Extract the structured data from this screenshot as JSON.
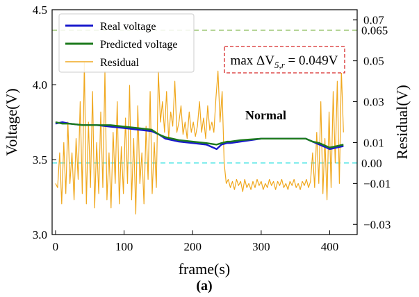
{
  "chart_data": {
    "type": "line",
    "xlabel": "frame(s)",
    "ylabel_left": "Voltage(V)",
    "ylabel_right": "Residual(V)",
    "caption": "(a)",
    "xlim": [
      -5,
      440
    ],
    "ylim_left": [
      3.0,
      4.5
    ],
    "ylim_right": [
      -0.035,
      0.075
    ],
    "x_ticks": [
      0,
      100,
      200,
      300,
      400
    ],
    "y_ticks_left": [
      "3.0",
      "3.5",
      "4.0",
      "4.5"
    ],
    "y_ticks_right": [
      "−0.03",
      "−0.01",
      "0.01",
      "0.03",
      "0.05",
      "0.07"
    ],
    "grid": false,
    "legend_position": "top-left",
    "legend": [
      "Real voltage",
      "Predicted voltage",
      "Residual"
    ],
    "series": [
      {
        "name": "Real voltage",
        "axis": "left",
        "color": "#1a1acc",
        "points": [
          [
            0,
            3.74
          ],
          [
            10,
            3.75
          ],
          [
            20,
            3.74
          ],
          [
            40,
            3.73
          ],
          [
            60,
            3.73
          ],
          [
            80,
            3.72
          ],
          [
            100,
            3.71
          ],
          [
            120,
            3.7
          ],
          [
            140,
            3.69
          ],
          [
            150,
            3.67
          ],
          [
            160,
            3.64
          ],
          [
            180,
            3.62
          ],
          [
            200,
            3.61
          ],
          [
            220,
            3.6
          ],
          [
            235,
            3.57
          ],
          [
            242,
            3.6
          ],
          [
            250,
            3.61
          ],
          [
            255,
            3.61
          ],
          [
            270,
            3.62
          ],
          [
            300,
            3.64
          ],
          [
            330,
            3.64
          ],
          [
            365,
            3.64
          ],
          [
            375,
            3.62
          ],
          [
            385,
            3.6
          ],
          [
            395,
            3.58
          ],
          [
            400,
            3.57
          ],
          [
            410,
            3.58
          ],
          [
            420,
            3.59
          ]
        ]
      },
      {
        "name": "Predicted voltage",
        "axis": "left",
        "color": "#1c7a1c",
        "points": [
          [
            0,
            3.75
          ],
          [
            10,
            3.74
          ],
          [
            20,
            3.74
          ],
          [
            40,
            3.73
          ],
          [
            60,
            3.73
          ],
          [
            80,
            3.73
          ],
          [
            100,
            3.72
          ],
          [
            120,
            3.71
          ],
          [
            140,
            3.7
          ],
          [
            150,
            3.67
          ],
          [
            160,
            3.65
          ],
          [
            180,
            3.63
          ],
          [
            200,
            3.62
          ],
          [
            220,
            3.61
          ],
          [
            235,
            3.6
          ],
          [
            242,
            3.61
          ],
          [
            250,
            3.62
          ],
          [
            255,
            3.62
          ],
          [
            270,
            3.63
          ],
          [
            300,
            3.64
          ],
          [
            330,
            3.64
          ],
          [
            365,
            3.64
          ],
          [
            375,
            3.62
          ],
          [
            385,
            3.61
          ],
          [
            395,
            3.59
          ],
          [
            400,
            3.58
          ],
          [
            410,
            3.59
          ],
          [
            420,
            3.6
          ]
        ]
      },
      {
        "name": "Residual",
        "axis": "right",
        "color": "#f0a81e",
        "points": [
          [
            0,
            -0.01
          ],
          [
            3,
            -0.012
          ],
          [
            6,
            0.005
          ],
          [
            9,
            -0.02
          ],
          [
            12,
            0.01
          ],
          [
            15,
            -0.015
          ],
          [
            18,
            0.02
          ],
          [
            21,
            -0.01
          ],
          [
            24,
            0.005
          ],
          [
            27,
            -0.018
          ],
          [
            30,
            0.012
          ],
          [
            33,
            -0.008
          ],
          [
            36,
            0.03
          ],
          [
            39,
            -0.015
          ],
          [
            42,
            0.049
          ],
          [
            45,
            -0.02
          ],
          [
            48,
            0.02
          ],
          [
            51,
            -0.012
          ],
          [
            54,
            0.035
          ],
          [
            57,
            -0.022
          ],
          [
            60,
            0.01
          ],
          [
            63,
            -0.015
          ],
          [
            66,
            0.025
          ],
          [
            69,
            -0.012
          ],
          [
            72,
            0.045
          ],
          [
            75,
            -0.018
          ],
          [
            78,
            0.005
          ],
          [
            81,
            -0.022
          ],
          [
            84,
            0.015
          ],
          [
            87,
            -0.01
          ],
          [
            90,
            0.03
          ],
          [
            93,
            -0.02
          ],
          [
            96,
            0.008
          ],
          [
            99,
            -0.015
          ],
          [
            102,
            0.022
          ],
          [
            105,
            -0.01
          ],
          [
            108,
            0.038
          ],
          [
            111,
            -0.018
          ],
          [
            114,
            0.012
          ],
          [
            117,
            -0.025
          ],
          [
            120,
            0.028
          ],
          [
            123,
            -0.01
          ],
          [
            126,
            0.005
          ],
          [
            129,
            -0.02
          ],
          [
            132,
            0.018
          ],
          [
            135,
            -0.008
          ],
          [
            138,
            0.035
          ],
          [
            141,
            -0.015
          ],
          [
            144,
            0.01
          ],
          [
            147,
            -0.012
          ],
          [
            150,
            0.045
          ],
          [
            153,
            0.02
          ],
          [
            156,
            0.03
          ],
          [
            159,
            0.015
          ],
          [
            162,
            0.035
          ],
          [
            165,
            0.012
          ],
          [
            168,
            0.025
          ],
          [
            171,
            0.018
          ],
          [
            174,
            0.04
          ],
          [
            177,
            0.015
          ],
          [
            180,
            0.02
          ],
          [
            183,
            0.028
          ],
          [
            186,
            0.014
          ],
          [
            189,
            0.02
          ],
          [
            192,
            0.012
          ],
          [
            195,
            0.025
          ],
          [
            198,
            0.015
          ],
          [
            201,
            0.02
          ],
          [
            204,
            0.013
          ],
          [
            207,
            0.018
          ],
          [
            210,
            0.03
          ],
          [
            213,
            0.015
          ],
          [
            216,
            0.022
          ],
          [
            219,
            0.012
          ],
          [
            222,
            0.028
          ],
          [
            225,
            0.016
          ],
          [
            228,
            0.02
          ],
          [
            231,
            0.015
          ],
          [
            234,
            0.032
          ],
          [
            237,
            0.045
          ],
          [
            240,
            0.02
          ],
          [
            243,
            0.035
          ],
          [
            246,
            0.0
          ],
          [
            249,
            -0.01
          ],
          [
            252,
            -0.008
          ],
          [
            255,
            -0.012
          ],
          [
            258,
            -0.009
          ],
          [
            261,
            -0.013
          ],
          [
            264,
            -0.008
          ],
          [
            267,
            -0.011
          ],
          [
            270,
            -0.009
          ],
          [
            273,
            -0.014
          ],
          [
            276,
            -0.008
          ],
          [
            279,
            -0.012
          ],
          [
            282,
            -0.01
          ],
          [
            285,
            -0.013
          ],
          [
            288,
            -0.009
          ],
          [
            291,
            -0.012
          ],
          [
            294,
            -0.008
          ],
          [
            297,
            -0.011
          ],
          [
            300,
            -0.009
          ],
          [
            303,
            -0.013
          ],
          [
            306,
            -0.01
          ],
          [
            309,
            -0.012
          ],
          [
            312,
            -0.008
          ],
          [
            315,
            -0.011
          ],
          [
            318,
            -0.009
          ],
          [
            321,
            -0.013
          ],
          [
            324,
            -0.009
          ],
          [
            327,
            -0.011
          ],
          [
            330,
            -0.008
          ],
          [
            333,
            -0.012
          ],
          [
            336,
            -0.01
          ],
          [
            339,
            -0.013
          ],
          [
            342,
            -0.009
          ],
          [
            345,
            -0.011
          ],
          [
            348,
            -0.008
          ],
          [
            351,
            -0.012
          ],
          [
            354,
            -0.01
          ],
          [
            357,
            -0.013
          ],
          [
            360,
            -0.009
          ],
          [
            363,
            -0.011
          ],
          [
            366,
            -0.008
          ],
          [
            369,
            -0.012
          ],
          [
            372,
            -0.009
          ],
          [
            375,
            0.005
          ],
          [
            378,
            -0.012
          ],
          [
            381,
            0.015
          ],
          [
            384,
            -0.01
          ],
          [
            387,
            0.03
          ],
          [
            390,
            -0.015
          ],
          [
            393,
            0.012
          ],
          [
            396,
            -0.018
          ],
          [
            399,
            0.025
          ],
          [
            402,
            -0.012
          ],
          [
            405,
            0.035
          ],
          [
            408,
            0.0
          ],
          [
            411,
            0.04
          ],
          [
            414,
            -0.01
          ],
          [
            417,
            0.045
          ],
          [
            420,
            0.015
          ]
        ]
      }
    ],
    "reference_lines": [
      {
        "axis": "right",
        "value": 0.065,
        "color": "#8bbd5a",
        "label": "0.065"
      },
      {
        "axis": "right",
        "value": 0.0,
        "color": "#33e0e0",
        "label": "0.00"
      }
    ],
    "annotations": {
      "max_box": {
        "lhs": "max ΔV",
        "sub": "5,r",
        "eq": " = 0.049V",
        "color": "#d62828"
      },
      "normal_label": {
        "text": "Normal",
        "color": "#5aa02c"
      }
    }
  }
}
